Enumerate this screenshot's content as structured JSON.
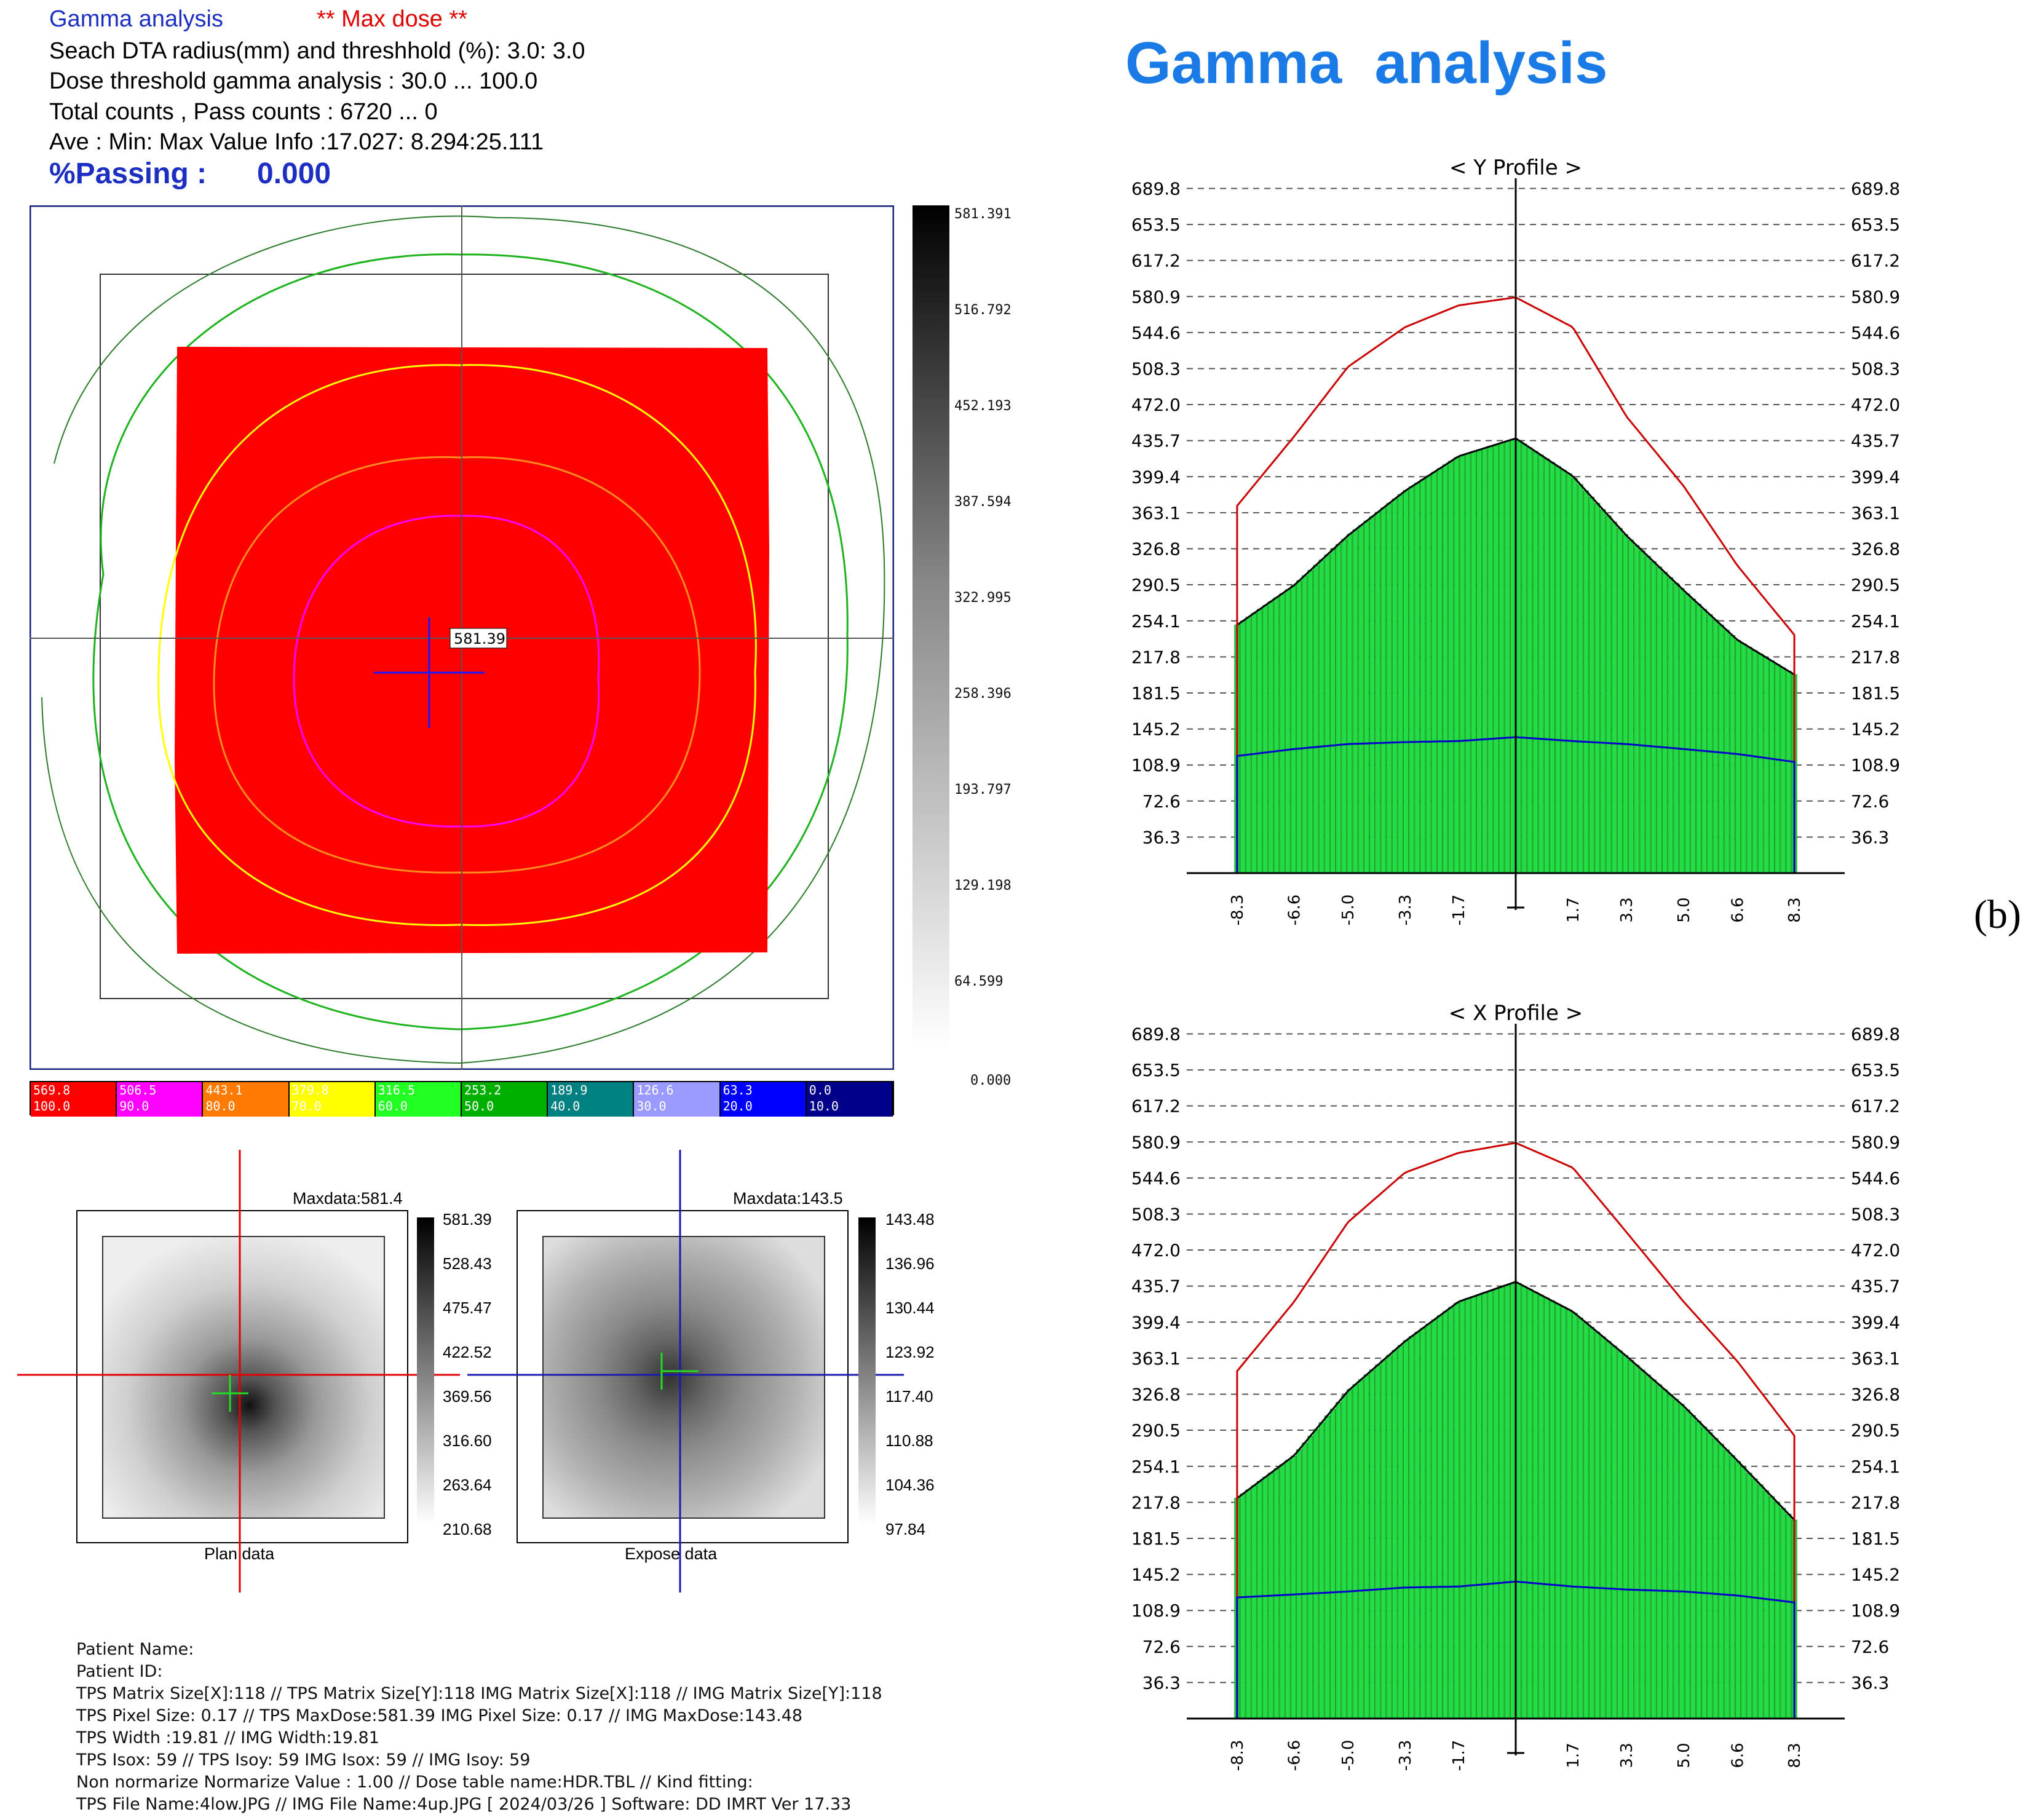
{
  "header": {
    "title": "Gamma analysis",
    "maxdose": "** Max dose **",
    "line1": "Seach DTA radius(mm) and threshhold (%): 3.0: 3.0",
    "line2": "Dose threshold gamma analysis : 30.0 ...  100.0",
    "line3": "Total counts , Pass counts : 6720 ...      0",
    "line4": "Ave : Min: Max Value Info :17.027: 8.294:25.111",
    "passing_label": "%Passing :",
    "passing_value": "0.000"
  },
  "main_map": {
    "center_label": "581.39",
    "colorbar_labels": [
      "581.391",
      "516.792",
      "452.193",
      "387.594",
      "322.995",
      "258.396",
      "193.797",
      "129.198",
      "64.599",
      "0.000"
    ]
  },
  "legend": [
    {
      "dose": "569.8",
      "pct": "100.0",
      "color": "#ff0000"
    },
    {
      "dose": "506.5",
      "pct": "90.0",
      "color": "#ff00ff"
    },
    {
      "dose": "443.1",
      "pct": "80.0",
      "color": "#ff7a00"
    },
    {
      "dose": "379.8",
      "pct": "70.0",
      "color": "#ffff00"
    },
    {
      "dose": "316.5",
      "pct": "60.0",
      "color": "#22ff22"
    },
    {
      "dose": "253.2",
      "pct": "50.0",
      "color": "#00b000"
    },
    {
      "dose": "189.9",
      "pct": "40.0",
      "color": "#008080"
    },
    {
      "dose": "126.6",
      "pct": "30.0",
      "color": "#9a9aff"
    },
    {
      "dose": "63.3",
      "pct": "20.0",
      "color": "#0000ff"
    },
    {
      "dose": "0.0",
      "pct": "10.0",
      "color": "#00008b"
    }
  ],
  "plan": {
    "maxdata": "Maxdata:581.4",
    "caption": "Plan data",
    "scale": [
      "581.39",
      "528.43",
      "475.47",
      "422.52",
      "369.56",
      "316.60",
      "263.64",
      "210.68"
    ]
  },
  "expose": {
    "maxdata": "Maxdata:143.5",
    "caption": "Expose data",
    "scale": [
      "143.48",
      "136.96",
      "130.44",
      "123.92",
      "117.40",
      "110.88",
      "104.36",
      "97.84"
    ]
  },
  "info_lines": [
    "Patient Name:",
    "Patient ID:",
    "TPS Matrix Size[X]:118 //   TPS Matrix Size[Y]:118     IMG Matrix Size[X]:118 //   IMG Matrix Size[Y]:118",
    "TPS Pixel Size: 0.17 //    TPS MaxDose:581.39     IMG Pixel Size: 0.17 //   IMG MaxDose:143.48",
    "TPS Width      :19.81 //   IMG Width:19.81",
    "TPS Isox:    59 //    TPS Isoy:    59      IMG Isox:    59 //   IMG Isoy:    59",
    "Non normarize Normarize Value :   1.00 //   Dose table name:HDR.TBL // Kind fitting:",
    "TPS File Name:4low.JPG  //  IMG File Name:4up.JPG  [ 2024/03/26 ] Software: DD IMRT Ver 17.33"
  ],
  "right_title": "Gamma  analysis",
  "panel_label": "(b)",
  "chart_data": [
    {
      "type": "bar",
      "title": "< Y Profile >",
      "y_ticks": [
        "689.8",
        "653.5",
        "617.2",
        "580.9",
        "544.6",
        "508.3",
        "472.0",
        "435.7",
        "399.4",
        "363.1",
        "326.8",
        "290.5",
        "254.1",
        "217.8",
        "181.5",
        "145.2",
        "108.9",
        "72.6",
        "36.3"
      ],
      "x_ticks": [
        "-8.3",
        "-6.6",
        "-5.0",
        "-3.3",
        "-1.7",
        "1.7",
        "3.3",
        "5.0",
        "6.6",
        "8.3"
      ],
      "x": [
        -8.3,
        -6.6,
        -5.0,
        -3.3,
        -1.7,
        0,
        1.7,
        3.3,
        5.0,
        6.6,
        8.3
      ],
      "series": [
        {
          "values": [
            250,
            290,
            340,
            385,
            420,
            438,
            400,
            340,
            285,
            235,
            200
          ],
          "color": "#000000"
        },
        {
          "values": [
            370,
            440,
            510,
            550,
            572,
            580,
            550,
            460,
            390,
            310,
            240
          ],
          "color": "#cc0000"
        },
        {
          "values": [
            118,
            125,
            130,
            132,
            133,
            137,
            133,
            130,
            125,
            120,
            112
          ],
          "color": "#0000cc"
        }
      ]
    },
    {
      "type": "bar",
      "title": "< X Profile >",
      "y_ticks": [
        "689.8",
        "653.5",
        "617.2",
        "580.9",
        "544.6",
        "508.3",
        "472.0",
        "435.7",
        "399.4",
        "363.1",
        "326.8",
        "290.5",
        "254.1",
        "217.8",
        "181.5",
        "145.2",
        "108.9",
        "72.6",
        "36.3"
      ],
      "x_ticks": [
        "-8.3",
        "-6.6",
        "-5.0",
        "-3.3",
        "-1.7",
        "1.7",
        "3.3",
        "5.0",
        "6.6",
        "8.3"
      ],
      "x": [
        -8.3,
        -6.6,
        -5.0,
        -3.3,
        -1.7,
        0,
        1.7,
        3.3,
        5.0,
        6.6,
        8.3
      ],
      "series": [
        {
          "values": [
            222,
            265,
            330,
            380,
            420,
            440,
            410,
            365,
            315,
            260,
            200
          ],
          "color": "#000000"
        },
        {
          "values": [
            350,
            420,
            500,
            550,
            570,
            580,
            555,
            490,
            420,
            360,
            285
          ],
          "color": "#cc0000"
        },
        {
          "values": [
            122,
            125,
            128,
            132,
            133,
            138,
            133,
            130,
            128,
            124,
            117
          ],
          "color": "#0000cc"
        }
      ]
    }
  ]
}
